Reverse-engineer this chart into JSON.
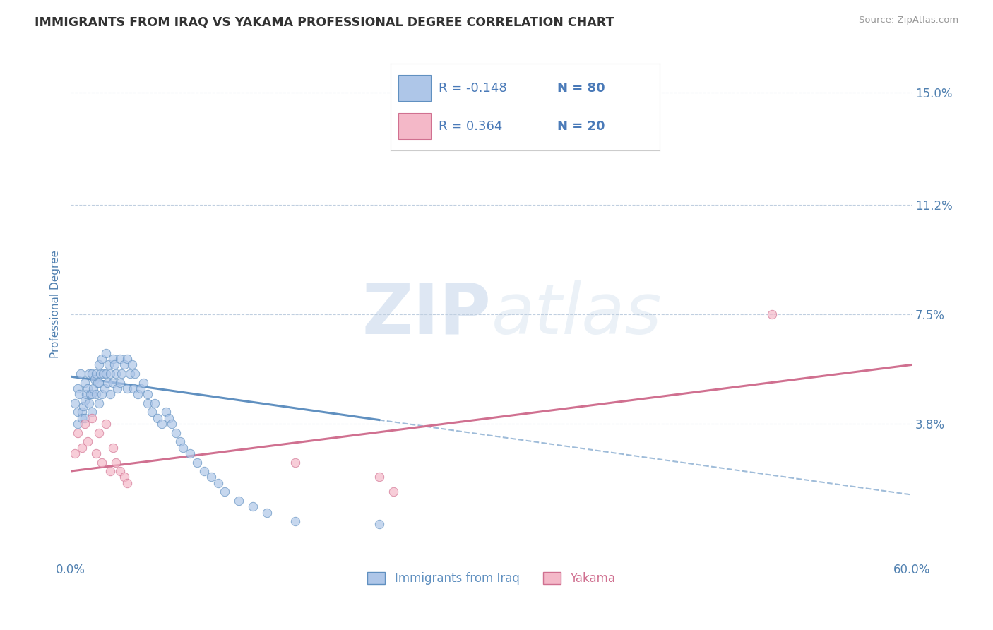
{
  "title": "IMMIGRANTS FROM IRAQ VS YAKAMA PROFESSIONAL DEGREE CORRELATION CHART",
  "source_text": "Source: ZipAtlas.com",
  "ylabel": "Professional Degree",
  "y_tick_labels": [
    "3.8%",
    "7.5%",
    "11.2%",
    "15.0%"
  ],
  "y_tick_values": [
    0.038,
    0.075,
    0.112,
    0.15
  ],
  "xlim": [
    0.0,
    0.6
  ],
  "ylim": [
    -0.008,
    0.165
  ],
  "legend_entries": [
    {
      "label": "Immigrants from Iraq",
      "R": "-0.148",
      "N": "80",
      "fill_color": "#aec6e8",
      "edge_color": "#6090c0"
    },
    {
      "label": "Yakama",
      "R": "0.364",
      "N": "20",
      "fill_color": "#f4b8c8",
      "edge_color": "#d07090"
    }
  ],
  "watermark_zip": "ZIP",
  "watermark_atlas": "atlas",
  "background_color": "#ffffff",
  "grid_color": "#c0cfe0",
  "title_color": "#333333",
  "label_color": "#5080b0",
  "tick_color": "#5080b0",
  "legend_text_color": "#4a7ab8",
  "blue_scatter_x": [
    0.003,
    0.005,
    0.005,
    0.005,
    0.006,
    0.007,
    0.008,
    0.008,
    0.009,
    0.01,
    0.01,
    0.01,
    0.011,
    0.012,
    0.013,
    0.013,
    0.014,
    0.015,
    0.015,
    0.015,
    0.016,
    0.017,
    0.018,
    0.018,
    0.019,
    0.02,
    0.02,
    0.02,
    0.021,
    0.022,
    0.022,
    0.023,
    0.024,
    0.025,
    0.025,
    0.026,
    0.027,
    0.028,
    0.028,
    0.03,
    0.03,
    0.031,
    0.032,
    0.033,
    0.035,
    0.035,
    0.036,
    0.038,
    0.04,
    0.04,
    0.042,
    0.044,
    0.045,
    0.046,
    0.048,
    0.05,
    0.052,
    0.055,
    0.055,
    0.058,
    0.06,
    0.062,
    0.065,
    0.068,
    0.07,
    0.072,
    0.075,
    0.078,
    0.08,
    0.085,
    0.09,
    0.095,
    0.1,
    0.105,
    0.11,
    0.12,
    0.13,
    0.14,
    0.16,
    0.22
  ],
  "blue_scatter_y": [
    0.045,
    0.05,
    0.042,
    0.038,
    0.048,
    0.055,
    0.042,
    0.04,
    0.044,
    0.052,
    0.046,
    0.04,
    0.048,
    0.05,
    0.055,
    0.045,
    0.048,
    0.055,
    0.048,
    0.042,
    0.05,
    0.053,
    0.055,
    0.048,
    0.052,
    0.058,
    0.052,
    0.045,
    0.055,
    0.06,
    0.048,
    0.055,
    0.05,
    0.062,
    0.055,
    0.052,
    0.058,
    0.055,
    0.048,
    0.06,
    0.052,
    0.058,
    0.055,
    0.05,
    0.06,
    0.052,
    0.055,
    0.058,
    0.06,
    0.05,
    0.055,
    0.058,
    0.05,
    0.055,
    0.048,
    0.05,
    0.052,
    0.048,
    0.045,
    0.042,
    0.045,
    0.04,
    0.038,
    0.042,
    0.04,
    0.038,
    0.035,
    0.032,
    0.03,
    0.028,
    0.025,
    0.022,
    0.02,
    0.018,
    0.015,
    0.012,
    0.01,
    0.008,
    0.005,
    0.004
  ],
  "pink_scatter_x": [
    0.003,
    0.005,
    0.008,
    0.01,
    0.012,
    0.015,
    0.018,
    0.02,
    0.022,
    0.025,
    0.028,
    0.03,
    0.032,
    0.035,
    0.038,
    0.04,
    0.16,
    0.22,
    0.23,
    0.5
  ],
  "pink_scatter_y": [
    0.028,
    0.035,
    0.03,
    0.038,
    0.032,
    0.04,
    0.028,
    0.035,
    0.025,
    0.038,
    0.022,
    0.03,
    0.025,
    0.022,
    0.02,
    0.018,
    0.025,
    0.02,
    0.015,
    0.075
  ],
  "blue_line_x0": 0.0,
  "blue_line_x1": 0.6,
  "blue_line_y0": 0.054,
  "blue_line_y1": 0.014,
  "pink_line_x0": 0.0,
  "pink_line_x1": 0.6,
  "pink_line_y0": 0.022,
  "pink_line_y1": 0.058
}
